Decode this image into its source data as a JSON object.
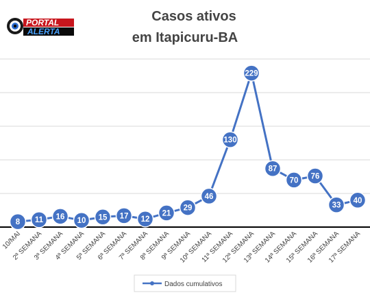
{
  "logo": {
    "line1": "PORTAL",
    "line2": "ALERTA"
  },
  "chart_data": {
    "type": "line",
    "title_lines": [
      "Casos ativos",
      "em Itapicuru-BA"
    ],
    "xlabel": "",
    "ylabel": "",
    "categories": [
      "10/MAI",
      "2ª SEMANA",
      "3ª SEMANA",
      "4ª SEMANA",
      "5ª SEMANA",
      "6ª SEMANA",
      "7ª SEMANA",
      "8ª SEMANA",
      "9ª SEMANA",
      "10ª SEMANA",
      "11ª SEMANA",
      "12ª SEMANA",
      "13ª SEMANA",
      "14ª SEMANA",
      "15ª SEMANA",
      "16ª SEMANA",
      "17ª SEMANA"
    ],
    "series": [
      {
        "name": "Dados cumulativos",
        "values": [
          8,
          11,
          16,
          10,
          15,
          17,
          12,
          21,
          29,
          46,
          130,
          229,
          87,
          70,
          76,
          33,
          40
        ]
      }
    ],
    "ylim": [
      0,
      250
    ],
    "y_gridlines": [
      50,
      100,
      150,
      200,
      250
    ],
    "grid": true,
    "y_tick_labels_shown": false,
    "data_labels": true,
    "legend_position": "bottom",
    "colors": {
      "line": "#4472C4",
      "marker": "#4472C4",
      "grid": "#d9d9d9",
      "axis": "#000000",
      "title": "#444444"
    }
  }
}
